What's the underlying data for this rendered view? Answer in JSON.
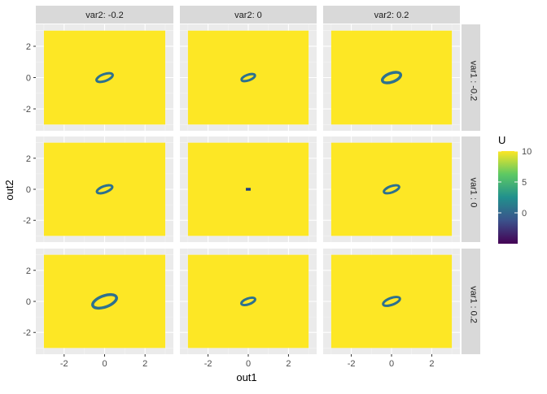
{
  "chart_data": {
    "type": "heatmap",
    "title": "",
    "xlabel": "out1",
    "ylabel": "out2",
    "xlim": [
      -3.4,
      3.4
    ],
    "ylim": [
      -3.4,
      3.4
    ],
    "xticks": [
      -2,
      0,
      2
    ],
    "yticks": [
      -2,
      0,
      2
    ],
    "grid": true,
    "facet_cols": {
      "labels": [
        "var2: -0.2",
        "var2: 0",
        "var2: 0.2"
      ]
    },
    "facet_rows": {
      "labels": [
        "var1 : -0.2",
        "var1 : 0",
        "var1 : 0.2"
      ]
    },
    "fill_domain": {
      "x": [
        -3,
        3
      ],
      "y": [
        -3,
        3
      ]
    },
    "fill_background_value": 10,
    "panels": [
      {
        "row": 0,
        "col": 0,
        "center": [
          0,
          0
        ],
        "rx": 0.42,
        "ry": 0.22,
        "angle_deg": 20,
        "thickness": 0.12
      },
      {
        "row": 0,
        "col": 1,
        "center": [
          0,
          0
        ],
        "rx": 0.35,
        "ry": 0.18,
        "angle_deg": 20,
        "thickness": 0.12
      },
      {
        "row": 0,
        "col": 2,
        "center": [
          0,
          0
        ],
        "rx": 0.48,
        "ry": 0.28,
        "angle_deg": 20,
        "thickness": 0.14
      },
      {
        "row": 1,
        "col": 0,
        "center": [
          0,
          0
        ],
        "rx": 0.4,
        "ry": 0.2,
        "angle_deg": 20,
        "thickness": 0.12
      },
      {
        "row": 1,
        "col": 1,
        "center": [
          0,
          0
        ],
        "rx": 0.12,
        "ry": 0.09,
        "angle_deg": 0,
        "thickness": 0.1
      },
      {
        "row": 1,
        "col": 2,
        "center": [
          0,
          0
        ],
        "rx": 0.4,
        "ry": 0.2,
        "angle_deg": 20,
        "thickness": 0.12
      },
      {
        "row": 2,
        "col": 0,
        "center": [
          0,
          0
        ],
        "rx": 0.62,
        "ry": 0.36,
        "angle_deg": 20,
        "thickness": 0.14
      },
      {
        "row": 2,
        "col": 1,
        "center": [
          0,
          0
        ],
        "rx": 0.36,
        "ry": 0.19,
        "angle_deg": 20,
        "thickness": 0.12
      },
      {
        "row": 2,
        "col": 2,
        "center": [
          0,
          0
        ],
        "rx": 0.44,
        "ry": 0.22,
        "angle_deg": 20,
        "thickness": 0.12
      }
    ],
    "legend": {
      "title": "U",
      "position": "right",
      "min": -5,
      "max": 10,
      "ticks": [
        10,
        5,
        0
      ]
    },
    "colors": {
      "panel_bg": "#ebebeb",
      "strip_bg": "#d9d9d9",
      "grid_major": "#ffffff",
      "grid_minor": "#f5f5f5",
      "fill_high": "#fde725",
      "ring_color": "#2f6b8e",
      "ring_inner": "#2a788e",
      "viridis": [
        "#440154",
        "#3b528b",
        "#21908d",
        "#5dc963",
        "#fde725"
      ]
    }
  }
}
